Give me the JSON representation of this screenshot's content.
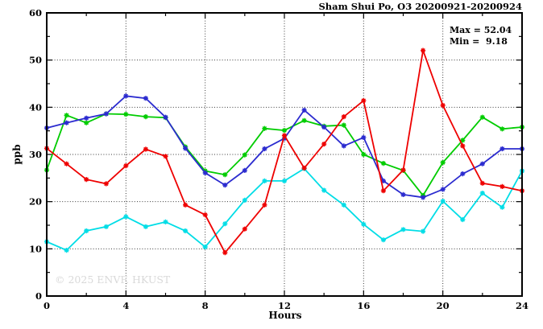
{
  "header": {
    "title": "Sham Shui Po, O3 20200921-20200924"
  },
  "annotations": {
    "max_label": "Max = 52.04",
    "min_label": "Min =  9.18"
  },
  "watermark": {
    "text": "© 2025 ENVF, HKUST",
    "color": "#d9d9d9"
  },
  "chart_data": {
    "type": "line",
    "title": "Sham Shui Po, O3 20200921-20200924",
    "xlabel": "Hours",
    "ylabel": "ppb",
    "xlim": [
      0,
      24
    ],
    "ylim": [
      0,
      60
    ],
    "x_major_ticks": [
      0,
      4,
      8,
      12,
      16,
      20,
      24
    ],
    "x_minor_tick_step": 2,
    "y_major_ticks": [
      0,
      10,
      20,
      30,
      40,
      50,
      60
    ],
    "y_minor_tick_step": 5,
    "grid": "dotted lines at major ticks",
    "legend_position": "none",
    "marker": "star",
    "stats": {
      "max": 52.04,
      "min": 9.18
    },
    "x": [
      0,
      1,
      2,
      3,
      4,
      5,
      6,
      7,
      8,
      9,
      10,
      11,
      12,
      13,
      14,
      15,
      16,
      17,
      18,
      19,
      20,
      21,
      22,
      23,
      24
    ],
    "series": [
      {
        "name": "series-green",
        "color": "#00cc00",
        "values": [
          26.7,
          38.3,
          36.7,
          38.6,
          38.5,
          38.0,
          37.8,
          31.6,
          26.5,
          25.7,
          29.9,
          35.5,
          35.1,
          37.2,
          36.0,
          36.2,
          30.0,
          28.1,
          26.6,
          21.3,
          28.3,
          33.0,
          37.9,
          35.4,
          35.8
        ]
      },
      {
        "name": "series-blue",
        "color": "#2b2bcf",
        "values": [
          35.6,
          36.7,
          37.7,
          38.6,
          42.4,
          41.9,
          37.9,
          31.3,
          26.1,
          23.5,
          26.6,
          31.2,
          33.4,
          39.4,
          35.8,
          31.8,
          33.6,
          24.4,
          21.5,
          20.9,
          22.6,
          25.9,
          28.0,
          31.2,
          31.2
        ]
      },
      {
        "name": "series-cyan",
        "color": "#00dde6",
        "values": [
          11.5,
          9.7,
          13.8,
          14.7,
          16.8,
          14.7,
          15.7,
          13.8,
          10.4,
          15.3,
          20.3,
          24.4,
          24.4,
          27.0,
          22.4,
          19.3,
          15.2,
          11.9,
          14.1,
          13.7,
          20.1,
          16.2,
          21.8,
          18.8,
          26.5
        ]
      },
      {
        "name": "series-red",
        "color": "#ee0000",
        "values": [
          31.3,
          28.0,
          24.7,
          23.8,
          27.6,
          31.1,
          29.6,
          19.3,
          17.2,
          9.18,
          14.2,
          19.3,
          34.0,
          27.1,
          32.2,
          38.0,
          41.4,
          22.3,
          26.7,
          52.04,
          40.4,
          31.8,
          23.9,
          23.2,
          22.3
        ]
      }
    ]
  }
}
